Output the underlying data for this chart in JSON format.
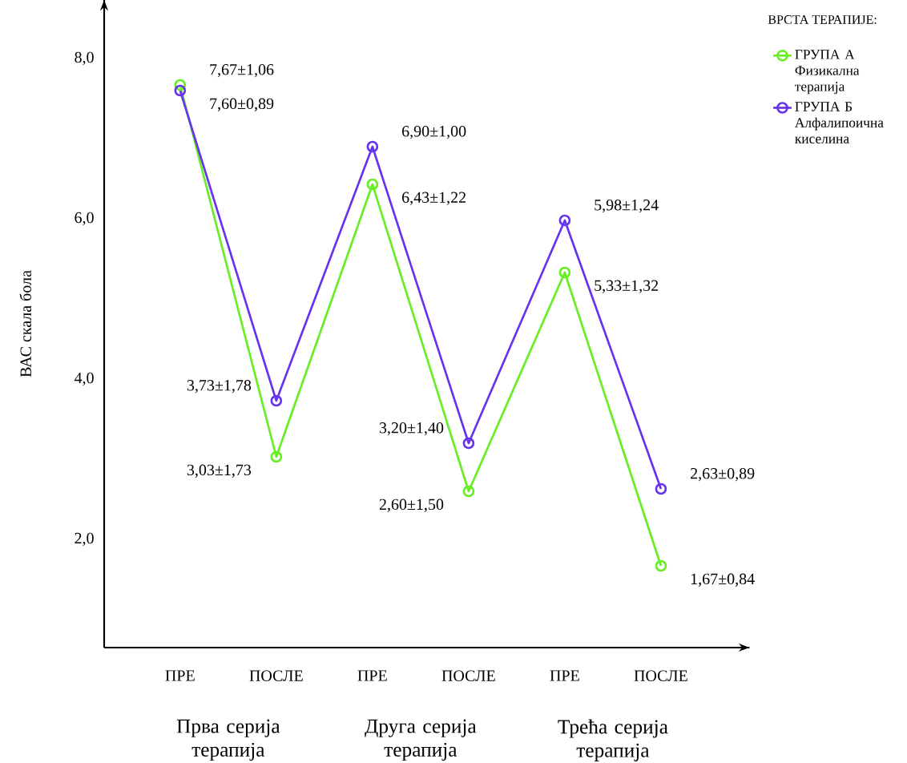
{
  "chart_data": {
    "type": "line",
    "ylabel": "ВАС скала бола",
    "legend_title": "ВРСТА ТЕРАПИЈЕ:",
    "categories": [
      "ПРЕ",
      "ПОСЛЕ",
      "ПРЕ",
      "ПОСЛЕ",
      "ПРЕ",
      "ПОСЛЕ"
    ],
    "annotations": [
      "Прва серија терапија",
      "Друга серија терапија",
      "Трећа серија терапија"
    ],
    "ylim": [
      0.65,
      8.73
    ],
    "yticks": [
      {
        "value": 2,
        "label": "2,0"
      },
      {
        "value": 4,
        "label": "4,0"
      },
      {
        "value": 6,
        "label": "6,0"
      },
      {
        "value": 8,
        "label": "8,0"
      }
    ],
    "series": [
      {
        "name": "ГРУПА А Физикална терапија",
        "color": "#66ee22",
        "values": [
          7.67,
          3.03,
          6.43,
          2.6,
          5.33,
          1.67
        ],
        "value_labels": [
          "7,67±1,06",
          "3,03±1,73",
          "6,43±1,22",
          "2,60±1,50",
          "5,33±1,32",
          "1,67±0,84"
        ]
      },
      {
        "name": "ГРУПА Б Алфалипоична киселина",
        "color": "#6633ee",
        "values": [
          7.6,
          3.73,
          6.9,
          3.2,
          5.98,
          2.63
        ],
        "value_labels": [
          "7,60±0,89",
          "3,73±1,78",
          "6,90±1,00",
          "3,20±1,40",
          "5,98±1,24",
          "2,63±0,89"
        ]
      }
    ],
    "marker": "circle",
    "line_style": "solid",
    "grid": false,
    "legend": "top right"
  }
}
